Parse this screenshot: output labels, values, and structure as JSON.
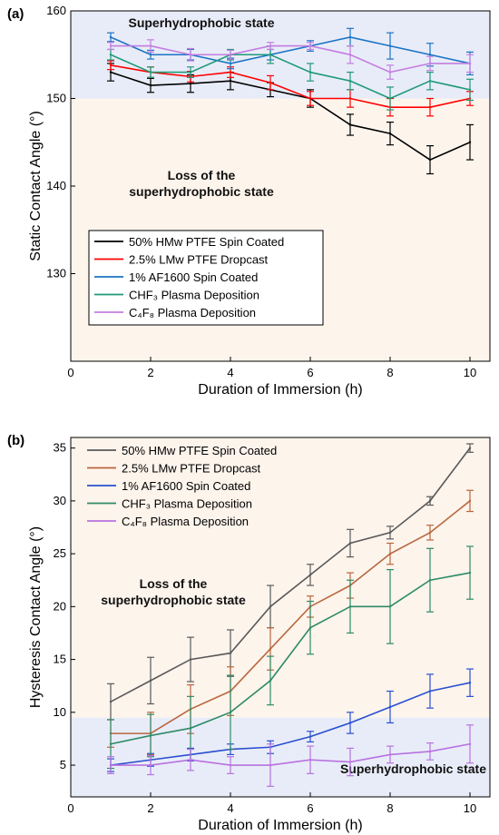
{
  "chart_data": [
    {
      "panel": "(a)",
      "type": "line",
      "xlabel": "Duration of Immersion (h)",
      "ylabel": "Static Contact Angle (°)",
      "xlim": [
        0,
        10.5
      ],
      "ylim": [
        120,
        160
      ],
      "xticks": [
        0,
        2,
        4,
        6,
        8,
        10
      ],
      "yticks": [
        130,
        140,
        150,
        160
      ],
      "grid": false,
      "legend_position": "bottom-left",
      "regions": [
        {
          "label": "Superhydrophobic state",
          "from": 150,
          "to": 160,
          "color": "#e8ecf8"
        },
        {
          "label": "Loss of the superhydrophobic state",
          "from": 120,
          "to": 150,
          "color": "#fdf4ec"
        }
      ],
      "x": [
        1,
        2,
        3,
        4,
        5,
        6,
        7,
        8,
        9,
        10
      ],
      "series": [
        {
          "name": "50% HMw PTFE Spin Coated",
          "color": "#000000",
          "values": [
            153,
            151.5,
            151.7,
            152,
            151,
            150,
            147,
            146,
            143,
            145
          ],
          "errors": [
            1,
            0.8,
            1,
            1,
            0.8,
            1,
            1.2,
            1.3,
            1.6,
            2
          ]
        },
        {
          "name": "2.5% LMw PTFE Dropcast",
          "color": "#ff0000",
          "values": [
            153.8,
            153,
            152.5,
            153,
            151.8,
            150,
            150,
            149,
            149,
            150
          ],
          "errors": [
            0.5,
            0.6,
            0.6,
            0.6,
            0.8,
            0.8,
            1,
            1,
            1,
            0.8
          ]
        },
        {
          "name": "1% AF1600 Spin Coated",
          "color": "#1a73c5",
          "values": [
            157,
            155,
            155,
            154,
            155,
            156,
            157,
            156,
            155,
            154
          ],
          "errors": [
            0.5,
            0.5,
            0.6,
            0.6,
            0.6,
            0.6,
            1,
            1.5,
            1.3,
            1.3
          ]
        },
        {
          "name": "CHF₃ Plasma Deposition",
          "color": "#1f9a78",
          "values": [
            155,
            153,
            153,
            155,
            155,
            153,
            152,
            150,
            152,
            151
          ],
          "errors": [
            0.6,
            0.6,
            0.6,
            0.6,
            1,
            1,
            1,
            1.3,
            1,
            1.2
          ]
        },
        {
          "name": "C₄F₈ Plasma Deposition",
          "color": "#c47de0",
          "values": [
            156,
            156,
            155,
            155,
            156,
            156,
            155,
            153,
            154,
            154
          ],
          "errors": [
            0.4,
            0.7,
            0.7,
            0.5,
            0.4,
            0.4,
            1,
            0.8,
            0.8,
            1
          ]
        }
      ]
    },
    {
      "panel": "(b)",
      "type": "line",
      "xlabel": "Duration of Immersion (h)",
      "ylabel": "Hysteresis Contact Angle (°)",
      "xlim": [
        0,
        10.5
      ],
      "ylim": [
        2,
        36
      ],
      "xticks": [
        0,
        2,
        4,
        6,
        8,
        10
      ],
      "yticks": [
        5,
        10,
        15,
        20,
        25,
        30,
        35
      ],
      "grid": false,
      "legend_position": "top-left",
      "regions": [
        {
          "label": "Loss of the superhydrophobic state",
          "from": 9.5,
          "to": 36,
          "color": "#fdf4ec"
        },
        {
          "label": "Superhydrophobic state",
          "from": 2,
          "to": 9.5,
          "color": "#e8ecf8"
        }
      ],
      "x": [
        1,
        2,
        3,
        4,
        5,
        6,
        7,
        8,
        9,
        10
      ],
      "series": [
        {
          "name": "50% HMw PTFE Spin Coated",
          "color": "#595959",
          "values": [
            11,
            13,
            15,
            15.6,
            20,
            23,
            26,
            27,
            30,
            35
          ],
          "errors": [
            1.7,
            2.2,
            2.1,
            2.2,
            2,
            1,
            1.3,
            0.6,
            0.4,
            0.4
          ]
        },
        {
          "name": "2.5% LMw PTFE Dropcast",
          "color": "#b8673e",
          "values": [
            8,
            8,
            10.3,
            12,
            16,
            20,
            22,
            25,
            27,
            30
          ],
          "errors": [
            1.3,
            2,
            2.3,
            2.3,
            2,
            1,
            1.2,
            1,
            0.7,
            1
          ]
        },
        {
          "name": "1% AF1600 Spin Coated",
          "color": "#2a4fd0",
          "values": [
            5,
            5.5,
            6,
            6.5,
            6.7,
            7.7,
            9,
            10.5,
            12,
            12.8
          ],
          "errors": [
            0.6,
            0.6,
            0.6,
            0.5,
            0.6,
            0.5,
            1,
            1.5,
            1.6,
            1.3
          ]
        },
        {
          "name": "CHF₃ Plasma Deposition",
          "color": "#2e8b66",
          "values": [
            7,
            7.8,
            8.5,
            10,
            13,
            18,
            20,
            20,
            22.5,
            23.2
          ],
          "errors": [
            2.3,
            2,
            3,
            3.5,
            2.3,
            2.5,
            2.5,
            3.5,
            3,
            2.5
          ]
        },
        {
          "name": "C₄F₈ Plasma Deposition",
          "color": "#b872e0",
          "values": [
            5,
            5,
            5.5,
            5,
            5,
            5.5,
            5.3,
            6,
            6.3,
            7
          ],
          "errors": [
            0.8,
            0.9,
            1,
            0.8,
            2,
            1.3,
            1.3,
            0.8,
            0.8,
            1.8
          ]
        }
      ]
    }
  ]
}
